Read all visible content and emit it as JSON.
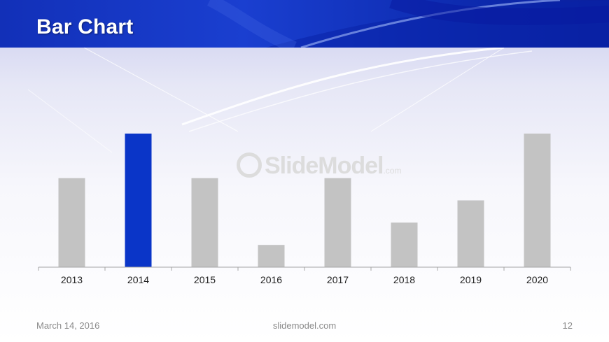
{
  "slide": {
    "title": "Bar Chart",
    "footer_date": "March 14, 2016",
    "footer_site": "slidemodel.com",
    "page_number": "12",
    "watermark_text": "SlideModel",
    "watermark_suffix": ".com"
  },
  "colors": {
    "bar_default": "#c3c3c3",
    "bar_highlight": "#0a35c8",
    "axis": "#a6a6a6"
  },
  "chart_data": {
    "type": "bar",
    "title": "",
    "xlabel": "",
    "ylabel": "",
    "categories": [
      "2013",
      "2014",
      "2015",
      "2016",
      "2017",
      "2018",
      "2019",
      "2020"
    ],
    "values": [
      4,
      6,
      4,
      1,
      4,
      2,
      3,
      6
    ],
    "highlight_index": 1,
    "ylim": [
      0,
      6
    ],
    "grid": false,
    "legend": "none"
  }
}
